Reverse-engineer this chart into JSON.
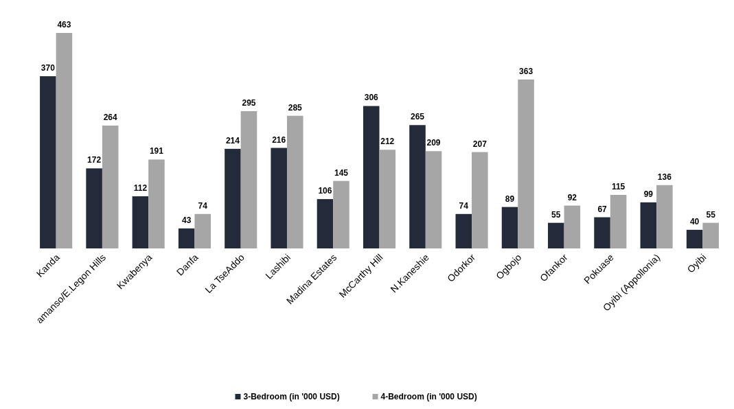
{
  "chart_data": {
    "type": "bar",
    "categories": [
      "Kanda",
      "amanso/E.Legon Hills",
      "Kwabenya",
      "Danfa",
      "La TseAddo",
      "Lashibi",
      "Madina Estates",
      "McCarthy Hill",
      "N.Kaneshie",
      "Odorkor",
      "Ogbojo",
      "Ofankor",
      "Pokuase",
      "Oyibi (Appollonia)",
      "Oyibi"
    ],
    "series": [
      {
        "name": "3-Bedroom (in '000 USD)",
        "color": "#232b3a",
        "values": [
          370,
          172,
          112,
          43,
          214,
          216,
          106,
          306,
          265,
          74,
          89,
          55,
          67,
          99,
          40
        ]
      },
      {
        "name": "4-Bedroom (in '000 USD)",
        "color": "#a6a6a6",
        "values": [
          463,
          264,
          191,
          74,
          295,
          285,
          145,
          212,
          209,
          207,
          363,
          92,
          115,
          136,
          55
        ]
      }
    ],
    "data_labels": true,
    "legend": "bottom"
  }
}
